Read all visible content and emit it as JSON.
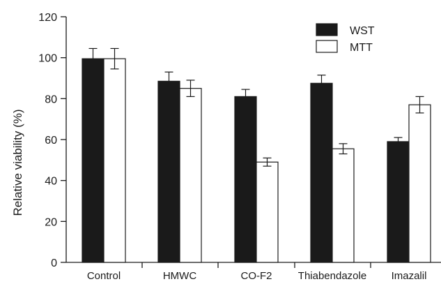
{
  "chart_data": {
    "type": "bar",
    "title": "",
    "xlabel": "",
    "ylabel": "Relative viability (%)",
    "ylim": [
      0,
      120
    ],
    "yticks": [
      0,
      20,
      40,
      60,
      80,
      100,
      120
    ],
    "grid": false,
    "legend_position": "top-right",
    "categories": [
      "Control",
      "HMWC",
      "CO-F2",
      "Thiabendazole",
      "Imazalil"
    ],
    "series": [
      {
        "name": "WST",
        "color": "#1a1a1a",
        "values": [
          99.5,
          88.5,
          81,
          87.5,
          59
        ],
        "errors": [
          5,
          4.5,
          3.5,
          4,
          2
        ]
      },
      {
        "name": "MTT",
        "color": "#ffffff",
        "values": [
          99.5,
          85,
          49,
          55.5,
          77
        ],
        "errors": [
          5,
          4,
          2,
          2.5,
          4
        ]
      }
    ]
  }
}
